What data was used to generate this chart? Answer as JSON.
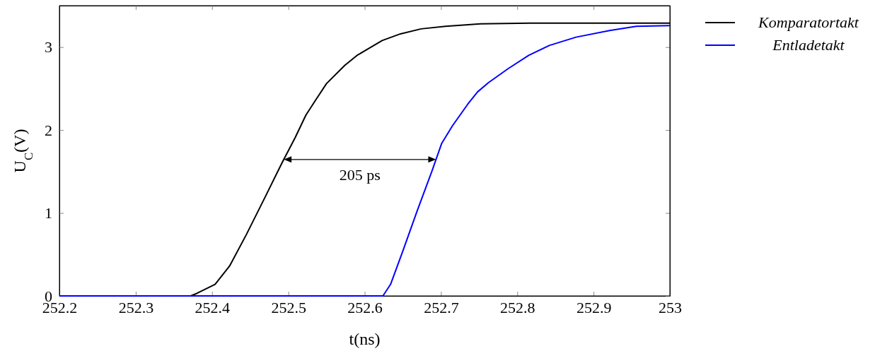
{
  "chart_data": {
    "type": "line",
    "xlabel": "t(ns)",
    "ylabel": "U$_{C}$(V)",
    "xlim": [
      252.2,
      253
    ],
    "ylim": [
      0,
      3.5
    ],
    "xticks": [
      252.2,
      252.3,
      252.4,
      252.5,
      252.6,
      252.7,
      252.8,
      252.9,
      253
    ],
    "yticks": [
      0,
      1,
      2,
      3
    ],
    "grid": false,
    "legend": "right",
    "marker": "none",
    "line_style": "solid",
    "annotations": [
      "205 ps"
    ],
    "series": [
      {
        "name": "Komparatortakt",
        "color": "#000000",
        "x": [
          252.2,
          252.372,
          252.38,
          252.404,
          252.423,
          252.445,
          252.47,
          252.492,
          252.509,
          252.523,
          252.535,
          252.55,
          252.574,
          252.59,
          252.603,
          252.623,
          252.647,
          252.674,
          252.706,
          252.752,
          252.817,
          253
        ],
        "values": [
          0,
          0,
          0.03,
          0.14,
          0.36,
          0.74,
          1.2,
          1.61,
          1.91,
          2.18,
          2.35,
          2.56,
          2.78,
          2.9,
          2.97,
          3.08,
          3.16,
          3.22,
          3.25,
          3.28,
          3.29,
          3.29
        ]
      },
      {
        "name": "Entladetakt",
        "color": "#0000ff",
        "x": [
          252.2,
          252.624,
          252.634,
          252.65,
          252.669,
          252.688,
          252.701,
          252.715,
          252.735,
          252.748,
          252.762,
          252.788,
          252.815,
          252.842,
          252.877,
          252.921,
          252.956,
          253
        ],
        "values": [
          0,
          0,
          0.14,
          0.54,
          1.03,
          1.5,
          1.84,
          2.05,
          2.31,
          2.46,
          2.57,
          2.74,
          2.9,
          3.02,
          3.12,
          3.2,
          3.25,
          3.26
        ]
      }
    ]
  }
}
